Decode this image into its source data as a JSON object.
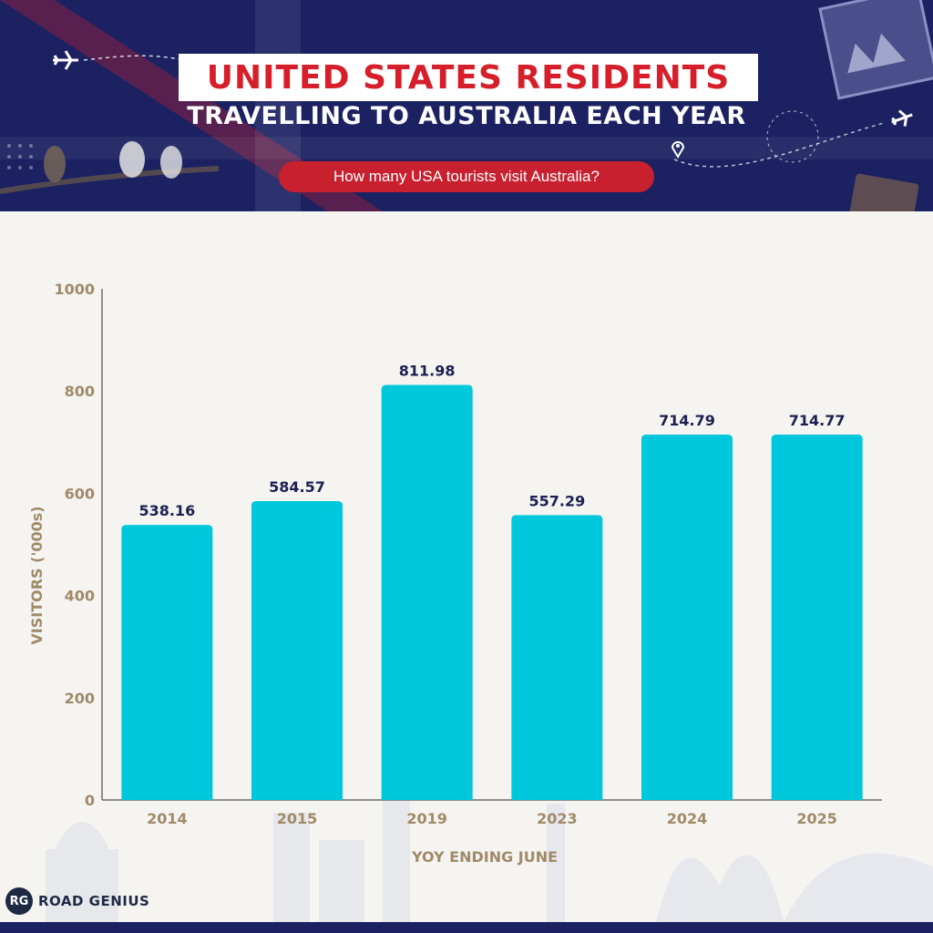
{
  "header": {
    "title_line1": "UNITED STATES RESIDENTS",
    "title_line2": "TRAVELLING TO AUSTRALIA EACH YEAR",
    "subtitle": "How many USA tourists visit Australia?"
  },
  "brand": {
    "logo_text": "RG",
    "name": "ROAD GENIUS"
  },
  "colors": {
    "header_bg": "#1b2161",
    "bar": "#00c8dc",
    "axis_text": "#a08a68",
    "value_label": "#1b2050",
    "title_red": "#d61f2a"
  },
  "chart_data": {
    "type": "bar",
    "categories": [
      "2014",
      "2015",
      "2019",
      "2023",
      "2024",
      "2025"
    ],
    "values": [
      538.16,
      584.57,
      811.98,
      557.29,
      714.79,
      714.77
    ],
    "value_labels": [
      "538.16",
      "584.57",
      "811.98",
      "557.29",
      "714.79",
      "714.77"
    ],
    "title": "",
    "xlabel": "YOY ENDING JUNE",
    "ylabel": "VISITORS ('000s)",
    "ylim": [
      0,
      1000
    ],
    "yticks": [
      0,
      200,
      400,
      600,
      800,
      1000
    ],
    "grid": false,
    "legend": "none"
  }
}
